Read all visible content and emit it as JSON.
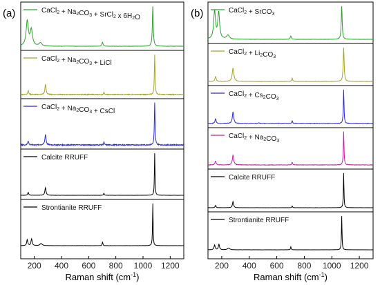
{
  "chart_data": [
    {
      "type": "line",
      "panel_label": "(a)",
      "xlabel": "Raman shift (cm",
      "xlabel_sup": "-1",
      "xlabel_close": ")",
      "xlim": [
        100,
        1300
      ],
      "xticks": [
        200,
        400,
        600,
        800,
        1000,
        1200
      ],
      "ylabel": "",
      "grid": false,
      "legend": "top-left of each trace",
      "series": [
        {
          "name": "CaCl2 + Na2CO3 + SrCl2 x 6H2O",
          "label_parts": [
            [
              "CaCl",
              ""
            ],
            [
              "2",
              "sub"
            ],
            [
              " + Na",
              ""
            ],
            [
              "2",
              "sub"
            ],
            [
              "CO",
              ""
            ],
            [
              "3",
              "sub"
            ],
            [
              " + SrCl",
              ""
            ],
            [
              "2",
              "sub"
            ],
            [
              " x 6H",
              ""
            ],
            [
              "2",
              "sub"
            ],
            [
              "O",
              ""
            ]
          ],
          "color": "#2ca02c",
          "peaks": [
            [
              148,
              0.62,
              10
            ],
            [
              178,
              0.4,
              10
            ],
            [
              245,
              0.08,
              12
            ],
            [
              702,
              0.1,
              5
            ],
            [
              1072,
              1.0,
              4
            ]
          ],
          "noise": 0.004
        },
        {
          "name": "CaCl2 + Na2CO3 + LiCl",
          "label_parts": [
            [
              "CaCl",
              ""
            ],
            [
              "2",
              "sub"
            ],
            [
              " + Na",
              ""
            ],
            [
              "2",
              "sub"
            ],
            [
              "CO",
              ""
            ],
            [
              "3",
              "sub"
            ],
            [
              " + LiCl",
              ""
            ]
          ],
          "color": "#a5a52a",
          "peaks": [
            [
              155,
              0.1,
              4
            ],
            [
              282,
              0.25,
              5
            ],
            [
              712,
              0.07,
              3
            ],
            [
              1086,
              1.0,
              3
            ]
          ],
          "noise": 0.01
        },
        {
          "name": "CaCl2 + Na2CO3 + CsCl",
          "label_parts": [
            [
              "CaCl",
              ""
            ],
            [
              "2",
              "sub"
            ],
            [
              " + Na",
              ""
            ],
            [
              "2",
              "sub"
            ],
            [
              "CO",
              ""
            ],
            [
              "3",
              "sub"
            ],
            [
              " + CsCl",
              ""
            ]
          ],
          "color": "#2b2bc8",
          "peaks": [
            [
              155,
              0.1,
              4
            ],
            [
              282,
              0.25,
              5
            ],
            [
              712,
              0.07,
              3
            ],
            [
              1086,
              1.0,
              3
            ]
          ],
          "noise": 0.012
        },
        {
          "name": "Calcite RRUFF",
          "label_parts": [
            [
              "Calcite RRUFF",
              ""
            ]
          ],
          "color": "#000000",
          "peaks": [
            [
              155,
              0.07,
              4
            ],
            [
              282,
              0.18,
              5
            ],
            [
              712,
              0.05,
              3
            ],
            [
              1086,
              1.0,
              2.5
            ]
          ],
          "noise": 0.002
        },
        {
          "name": "Strontianite RRUFF",
          "label_parts": [
            [
              "Strontianite RRUFF",
              ""
            ]
          ],
          "color": "#000000",
          "peaks": [
            [
              148,
              0.14,
              5
            ],
            [
              180,
              0.16,
              5
            ],
            [
              250,
              0.05,
              10
            ],
            [
              702,
              0.09,
              3
            ],
            [
              1072,
              1.0,
              2.5
            ]
          ],
          "noise": 0.002
        }
      ]
    },
    {
      "type": "line",
      "panel_label": "(b)",
      "xlabel": "Raman shift (cm",
      "xlabel_sup": "-1",
      "xlabel_close": ")",
      "xlim": [
        100,
        1300
      ],
      "xticks": [
        200,
        400,
        600,
        800,
        1000,
        1200
      ],
      "ylabel": "",
      "grid": false,
      "legend": "top-left of each trace",
      "series": [
        {
          "name": "CaCl2 + SrCO3",
          "label_parts": [
            [
              "CaCl",
              ""
            ],
            [
              "2",
              "sub"
            ],
            [
              " + SrCO",
              ""
            ],
            [
              "3",
              "sub"
            ]
          ],
          "color": "#2ca02c",
          "peaks": [
            [
              148,
              0.85,
              8
            ],
            [
              178,
              0.8,
              8
            ],
            [
              245,
              0.12,
              12
            ],
            [
              702,
              0.1,
              5
            ],
            [
              1072,
              1.0,
              4
            ]
          ],
          "noise": 0.004
        },
        {
          "name": "CaCl2 + Li2CO3",
          "label_parts": [
            [
              "CaCl",
              ""
            ],
            [
              "2",
              "sub"
            ],
            [
              " + Li",
              ""
            ],
            [
              "2",
              "sub"
            ],
            [
              "CO",
              ""
            ],
            [
              "3",
              "sub"
            ]
          ],
          "color": "#a5a52a",
          "peaks": [
            [
              155,
              0.15,
              5
            ],
            [
              282,
              0.4,
              7
            ],
            [
              712,
              0.1,
              4
            ],
            [
              1086,
              1.0,
              4
            ]
          ],
          "noise": 0.005
        },
        {
          "name": "CaCl2 + Cs2CO3",
          "label_parts": [
            [
              "CaCl",
              ""
            ],
            [
              "2",
              "sub"
            ],
            [
              " + Cs",
              ""
            ],
            [
              "2",
              "sub"
            ],
            [
              "CO",
              ""
            ],
            [
              "3",
              "sub"
            ]
          ],
          "color": "#2b2bc8",
          "peaks": [
            [
              155,
              0.14,
              5
            ],
            [
              282,
              0.35,
              6
            ],
            [
              470,
              0.03,
              4
            ],
            [
              712,
              0.08,
              4
            ],
            [
              1086,
              1.0,
              3
            ]
          ],
          "noise": 0.006
        },
        {
          "name": "CaCl2 + Na2CO3",
          "label_parts": [
            [
              "CaCl",
              ""
            ],
            [
              "2",
              "sub"
            ],
            [
              " + Na",
              ""
            ],
            [
              "2",
              "sub"
            ],
            [
              "CO",
              ""
            ],
            [
              "3",
              "sub"
            ]
          ],
          "color": "#c020a0",
          "peaks": [
            [
              155,
              0.12,
              5
            ],
            [
              282,
              0.3,
              6
            ],
            [
              712,
              0.08,
              4
            ],
            [
              1086,
              1.0,
              3
            ]
          ],
          "noise": 0.006
        },
        {
          "name": "Calcite RRUFF",
          "label_parts": [
            [
              "Calcite RRUFF",
              ""
            ]
          ],
          "color": "#000000",
          "peaks": [
            [
              155,
              0.07,
              4
            ],
            [
              282,
              0.18,
              5
            ],
            [
              712,
              0.05,
              3
            ],
            [
              1086,
              1.0,
              2.5
            ]
          ],
          "noise": 0.002
        },
        {
          "name": "Strontianite RRUFF",
          "label_parts": [
            [
              "Strontianite RRUFF",
              ""
            ]
          ],
          "color": "#000000",
          "peaks": [
            [
              148,
              0.14,
              5
            ],
            [
              180,
              0.16,
              5
            ],
            [
              250,
              0.05,
              10
            ],
            [
              702,
              0.09,
              3
            ],
            [
              1072,
              1.0,
              2.5
            ]
          ],
          "noise": 0.002
        }
      ]
    }
  ]
}
